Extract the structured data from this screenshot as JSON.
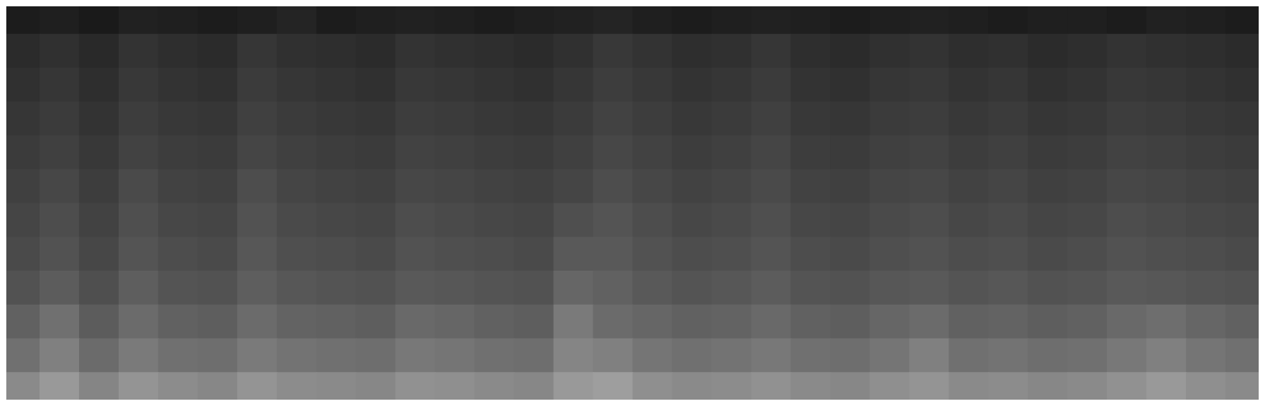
{
  "chart_data": {
    "type": "heatmap",
    "tick_labels": false,
    "color_range": [
      0,
      100
    ],
    "cells": [
      [
        11,
        12,
        10,
        13,
        12,
        11,
        12,
        14,
        11,
        12,
        13,
        12,
        11,
        12,
        13,
        14,
        12,
        11,
        12,
        13,
        12,
        11,
        12,
        13,
        12,
        11,
        12,
        12,
        11,
        13,
        12,
        11
      ],
      [
        17,
        19,
        16,
        20,
        18,
        17,
        21,
        19,
        18,
        17,
        20,
        19,
        18,
        17,
        19,
        22,
        20,
        18,
        19,
        21,
        18,
        17,
        19,
        20,
        18,
        19,
        17,
        18,
        20,
        19,
        18,
        17
      ],
      [
        19,
        21,
        18,
        22,
        20,
        19,
        23,
        21,
        20,
        19,
        22,
        21,
        20,
        19,
        21,
        24,
        22,
        20,
        21,
        23,
        20,
        19,
        21,
        22,
        20,
        21,
        19,
        20,
        22,
        21,
        20,
        19
      ],
      [
        21,
        23,
        20,
        24,
        22,
        21,
        25,
        23,
        22,
        21,
        24,
        23,
        22,
        21,
        23,
        26,
        24,
        22,
        23,
        25,
        22,
        21,
        23,
        24,
        22,
        23,
        21,
        22,
        24,
        23,
        22,
        21
      ],
      [
        23,
        25,
        22,
        26,
        24,
        23,
        27,
        25,
        24,
        23,
        26,
        25,
        24,
        23,
        25,
        28,
        26,
        24,
        25,
        27,
        24,
        23,
        25,
        26,
        24,
        25,
        23,
        24,
        26,
        25,
        24,
        23
      ],
      [
        25,
        28,
        24,
        29,
        26,
        25,
        30,
        27,
        26,
        25,
        28,
        27,
        26,
        25,
        27,
        30,
        28,
        26,
        27,
        29,
        26,
        25,
        27,
        28,
        26,
        27,
        25,
        26,
        28,
        27,
        26,
        25
      ],
      [
        27,
        30,
        26,
        31,
        28,
        27,
        32,
        29,
        28,
        27,
        30,
        29,
        28,
        27,
        31,
        33,
        30,
        28,
        29,
        31,
        28,
        27,
        29,
        30,
        28,
        29,
        27,
        28,
        30,
        29,
        28,
        27
      ],
      [
        29,
        32,
        28,
        33,
        30,
        29,
        34,
        31,
        30,
        29,
        32,
        31,
        30,
        29,
        35,
        35,
        32,
        30,
        31,
        33,
        30,
        29,
        31,
        32,
        30,
        31,
        29,
        30,
        32,
        31,
        30,
        29
      ],
      [
        32,
        36,
        31,
        37,
        33,
        32,
        37,
        34,
        33,
        32,
        35,
        34,
        33,
        32,
        40,
        38,
        35,
        33,
        34,
        36,
        33,
        32,
        34,
        35,
        33,
        34,
        32,
        33,
        35,
        34,
        33,
        32
      ],
      [
        38,
        44,
        36,
        42,
        38,
        37,
        42,
        39,
        38,
        37,
        41,
        40,
        38,
        37,
        48,
        42,
        40,
        38,
        39,
        41,
        38,
        37,
        40,
        42,
        38,
        39,
        37,
        38,
        41,
        43,
        40,
        38
      ],
      [
        44,
        50,
        42,
        48,
        44,
        43,
        48,
        45,
        44,
        43,
        47,
        46,
        44,
        43,
        52,
        50,
        46,
        44,
        45,
        47,
        44,
        43,
        46,
        50,
        44,
        45,
        43,
        44,
        47,
        50,
        46,
        44
      ],
      [
        54,
        60,
        52,
        58,
        55,
        53,
        58,
        55,
        54,
        53,
        57,
        56,
        54,
        53,
        60,
        62,
        56,
        54,
        55,
        57,
        54,
        53,
        56,
        58,
        54,
        55,
        53,
        54,
        57,
        60,
        56,
        54
      ]
    ]
  }
}
